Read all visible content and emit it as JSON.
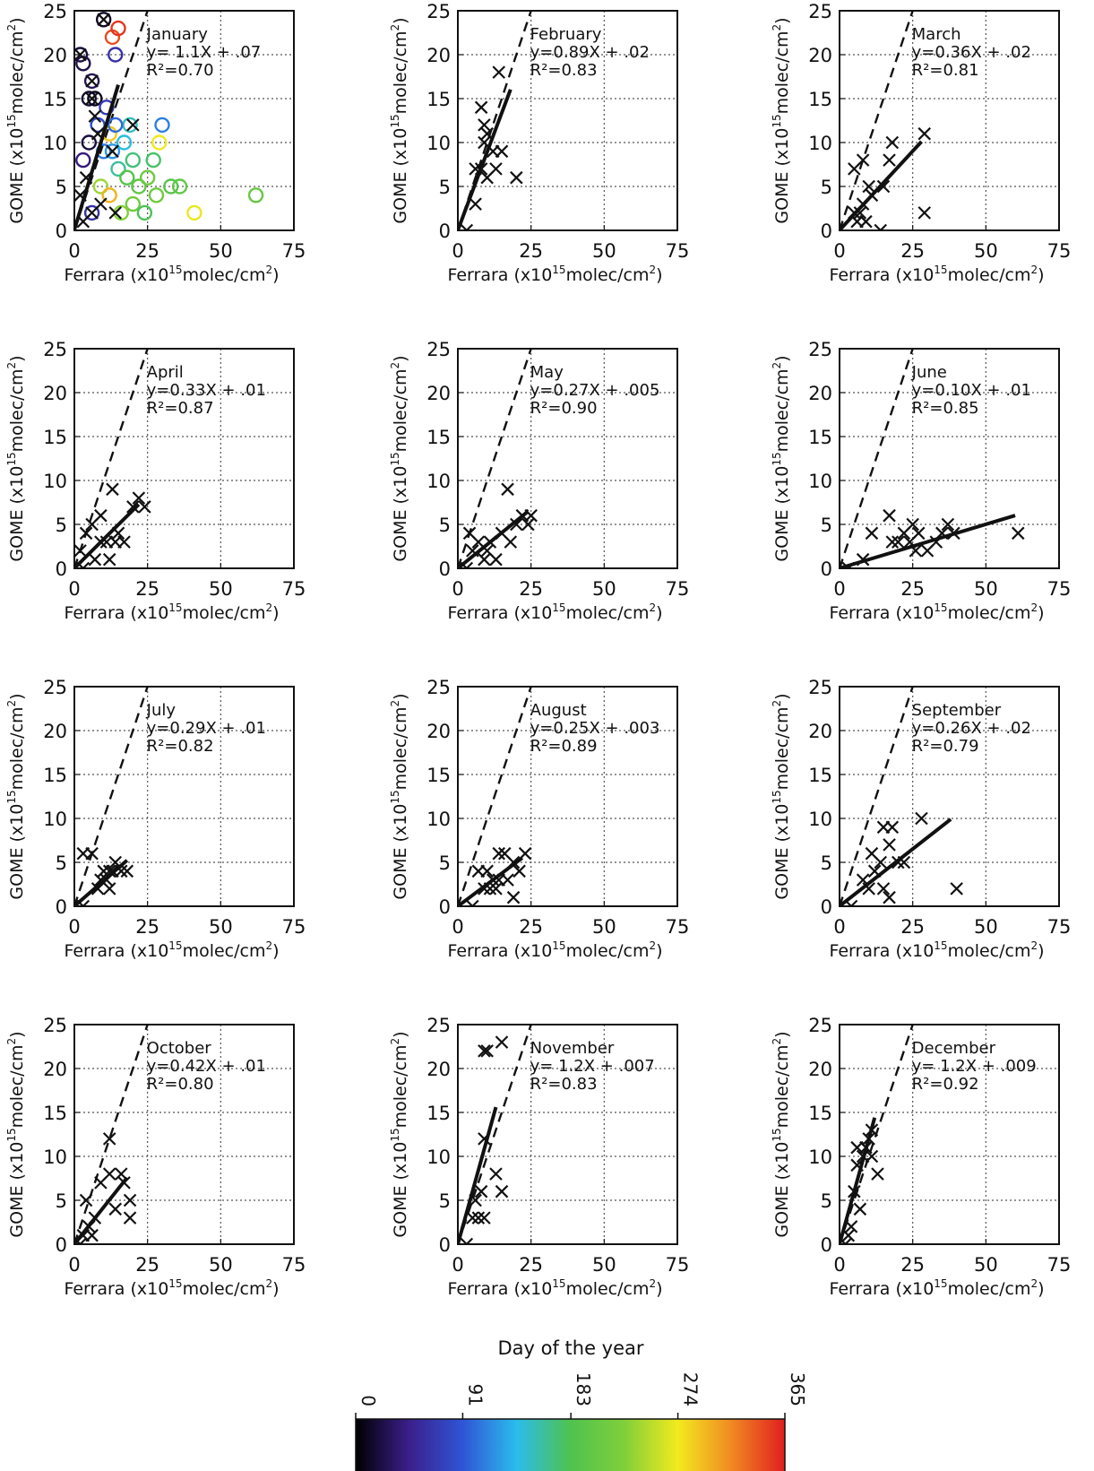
{
  "figure": {
    "colorbar": {
      "title": "Day of the year",
      "ticks": [
        0,
        91,
        183,
        274,
        365
      ],
      "colors": [
        "#000000",
        "#3b1f8c",
        "#2f55d6",
        "#2bbcec",
        "#4fc24f",
        "#7fcf3a",
        "#f2ea1e",
        "#f18a22",
        "#e01e1e"
      ]
    }
  },
  "chart_data": [
    {
      "type": "scatter",
      "month": "January",
      "xlabel": "Ferrara (x10^15 molec/cm^2)",
      "ylabel": "GOME (x10^15 molec/cm^2)",
      "xlim": [
        0,
        75
      ],
      "ylim": [
        0,
        25
      ],
      "xticks": [
        0,
        25,
        50,
        75
      ],
      "yticks": [
        0,
        5,
        10,
        15,
        20,
        25
      ],
      "grid": true,
      "one_to_one_line": "dashed",
      "fit": {
        "equation": "y= 1.1X + .07",
        "r2_label": "R²=0.70",
        "slope": 1.1,
        "intercept": 0.07,
        "x_end": 15
      },
      "points": [
        {
          "x": 2,
          "y": 20,
          "day": 20
        },
        {
          "x": 3,
          "y": 19,
          "day": 25
        },
        {
          "x": 5,
          "y": 15,
          "day": 15
        },
        {
          "x": 7,
          "y": 15,
          "day": 10
        },
        {
          "x": 6,
          "y": 17,
          "day": 30
        },
        {
          "x": 10,
          "y": 24,
          "day": 12
        },
        {
          "x": 14,
          "y": 20,
          "day": 60
        },
        {
          "x": 11,
          "y": 14,
          "day": 70
        },
        {
          "x": 8,
          "y": 12,
          "day": 80
        },
        {
          "x": 5,
          "y": 10,
          "day": 20
        },
        {
          "x": 3,
          "y": 8,
          "day": 40
        },
        {
          "x": 10,
          "y": 9,
          "day": 110
        },
        {
          "x": 13,
          "y": 9,
          "day": 120
        },
        {
          "x": 15,
          "y": 7,
          "day": 160
        },
        {
          "x": 20,
          "y": 8,
          "day": 170
        },
        {
          "x": 18,
          "y": 6,
          "day": 190
        },
        {
          "x": 22,
          "y": 5,
          "day": 200
        },
        {
          "x": 25,
          "y": 6,
          "day": 210
        },
        {
          "x": 28,
          "y": 4,
          "day": 215
        },
        {
          "x": 33,
          "y": 5,
          "day": 190
        },
        {
          "x": 36,
          "y": 5,
          "day": 200
        },
        {
          "x": 62,
          "y": 4,
          "day": 205
        },
        {
          "x": 41,
          "y": 2,
          "day": 270
        },
        {
          "x": 29,
          "y": 10,
          "day": 275
        },
        {
          "x": 30,
          "y": 12,
          "day": 110
        },
        {
          "x": 13,
          "y": 22,
          "day": 345
        },
        {
          "x": 15,
          "y": 23,
          "day": 355
        },
        {
          "x": 12,
          "y": 11,
          "day": 290
        },
        {
          "x": 17,
          "y": 10,
          "day": 140
        },
        {
          "x": 20,
          "y": 3,
          "day": 215
        },
        {
          "x": 9,
          "y": 5,
          "day": 240
        },
        {
          "x": 12,
          "y": 4,
          "day": 300
        },
        {
          "x": 16,
          "y": 2,
          "day": 230
        },
        {
          "x": 24,
          "y": 2,
          "day": 180
        },
        {
          "x": 6,
          "y": 2,
          "day": 60
        },
        {
          "x": 27,
          "y": 8,
          "day": 175
        },
        {
          "x": 19,
          "y": 12,
          "day": 150
        },
        {
          "x": 14,
          "y": 12,
          "day": 100
        }
      ],
      "crosses": [
        [
          10,
          24
        ],
        [
          2,
          20
        ],
        [
          6,
          17
        ],
        [
          6,
          15
        ],
        [
          7,
          13
        ],
        [
          13,
          9
        ],
        [
          4,
          6
        ],
        [
          6,
          2
        ],
        [
          9,
          3
        ],
        [
          3,
          1
        ],
        [
          14,
          2
        ],
        [
          20,
          12
        ],
        [
          8,
          11
        ],
        [
          2,
          4
        ]
      ]
    },
    {
      "type": "scatter",
      "month": "February",
      "xlim": [
        0,
        75
      ],
      "ylim": [
        0,
        25
      ],
      "grid": true,
      "one_to_one_line": "dashed",
      "fit": {
        "equation": "y=0.89X + .02",
        "r2_label": "R²=0.83",
        "slope": 0.89,
        "intercept": 0.02,
        "x_end": 18
      },
      "crosses": [
        [
          14,
          18
        ],
        [
          8,
          14
        ],
        [
          9,
          12
        ],
        [
          10,
          11
        ],
        [
          9,
          10
        ],
        [
          12,
          9
        ],
        [
          15,
          9
        ],
        [
          8,
          7
        ],
        [
          6,
          7
        ],
        [
          10,
          6
        ],
        [
          13,
          7
        ],
        [
          20,
          6
        ],
        [
          6,
          3
        ],
        [
          3,
          0
        ]
      ]
    },
    {
      "type": "scatter",
      "month": "March",
      "xlim": [
        0,
        75
      ],
      "ylim": [
        0,
        25
      ],
      "grid": true,
      "one_to_one_line": "dashed",
      "fit": {
        "equation": "y=0.36X + .02",
        "r2_label": "R²=0.81",
        "slope": 0.36,
        "intercept": 0.02,
        "x_end": 28
      },
      "crosses": [
        [
          29,
          11
        ],
        [
          18,
          10
        ],
        [
          8,
          8
        ],
        [
          5,
          7
        ],
        [
          17,
          8
        ],
        [
          10,
          5
        ],
        [
          15,
          5
        ],
        [
          11,
          4
        ],
        [
          8,
          3
        ],
        [
          7,
          2
        ],
        [
          5,
          2
        ],
        [
          9,
          1
        ],
        [
          6,
          1
        ],
        [
          14,
          0
        ],
        [
          29,
          2
        ]
      ]
    },
    {
      "type": "scatter",
      "month": "April",
      "xlim": [
        0,
        75
      ],
      "ylim": [
        0,
        25
      ],
      "grid": true,
      "one_to_one_line": "dashed",
      "fit": {
        "equation": "y=0.33X + .01",
        "r2_label": "R²=0.87",
        "slope": 0.33,
        "intercept": 0.01,
        "x_end": 22
      },
      "crosses": [
        [
          13,
          9
        ],
        [
          22,
          8
        ],
        [
          20,
          7
        ],
        [
          24,
          7
        ],
        [
          9,
          6
        ],
        [
          6,
          5
        ],
        [
          4,
          4
        ],
        [
          14,
          3
        ],
        [
          11,
          3
        ],
        [
          15,
          4
        ],
        [
          2,
          2
        ],
        [
          7,
          1
        ],
        [
          9,
          3
        ],
        [
          12,
          1
        ],
        [
          17,
          3
        ],
        [
          3,
          0
        ]
      ]
    },
    {
      "type": "scatter",
      "month": "May",
      "xlim": [
        0,
        75
      ],
      "ylim": [
        0,
        25
      ],
      "grid": true,
      "one_to_one_line": "dashed",
      "fit": {
        "equation": "y=0.27X + .005",
        "r2_label": "R²=0.90",
        "slope": 0.27,
        "intercept": 0.005,
        "x_end": 24
      },
      "crosses": [
        [
          17,
          9
        ],
        [
          25,
          6
        ],
        [
          22,
          6
        ],
        [
          20,
          5
        ],
        [
          24,
          5
        ],
        [
          4,
          4
        ],
        [
          15,
          4
        ],
        [
          11,
          3
        ],
        [
          7,
          3
        ],
        [
          18,
          3
        ],
        [
          10,
          2
        ],
        [
          13,
          1
        ],
        [
          9,
          1
        ],
        [
          5,
          2
        ],
        [
          3,
          0
        ]
      ]
    },
    {
      "type": "scatter",
      "month": "June",
      "xlim": [
        0,
        75
      ],
      "ylim": [
        0,
        25
      ],
      "grid": true,
      "one_to_one_line": "dashed",
      "fit": {
        "equation": "y=0.10X + .01",
        "r2_label": "R²=0.85",
        "slope": 0.1,
        "intercept": 0.01,
        "x_end": 60
      },
      "crosses": [
        [
          61,
          4
        ],
        [
          37,
          5
        ],
        [
          35,
          4
        ],
        [
          17,
          6
        ],
        [
          25,
          5
        ],
        [
          22,
          4
        ],
        [
          27,
          4
        ],
        [
          24,
          3
        ],
        [
          20,
          3
        ],
        [
          11,
          4
        ],
        [
          30,
          2
        ],
        [
          26,
          2
        ],
        [
          33,
          3
        ],
        [
          39,
          4
        ],
        [
          18,
          3
        ],
        [
          3,
          0
        ],
        [
          8,
          1
        ]
      ]
    },
    {
      "type": "scatter",
      "month": "July",
      "xlim": [
        0,
        75
      ],
      "ylim": [
        0,
        25
      ],
      "grid": true,
      "one_to_one_line": "dashed",
      "fit": {
        "equation": "y=0.29X + .01",
        "r2_label": "R²=0.82",
        "slope": 0.29,
        "intercept": 0.01,
        "x_end": 18
      },
      "crosses": [
        [
          3,
          6
        ],
        [
          6,
          6
        ],
        [
          14,
          5
        ],
        [
          16,
          4
        ],
        [
          12,
          4
        ],
        [
          11,
          3
        ],
        [
          13,
          4
        ],
        [
          18,
          4
        ],
        [
          9,
          3
        ],
        [
          8,
          2
        ],
        [
          12,
          2
        ],
        [
          10,
          4
        ],
        [
          3,
          0
        ]
      ]
    },
    {
      "type": "scatter",
      "month": "August",
      "xlim": [
        0,
        75
      ],
      "ylim": [
        0,
        25
      ],
      "grid": true,
      "one_to_one_line": "dashed",
      "fit": {
        "equation": "y=0.25X + .003",
        "r2_label": "R²=0.89",
        "slope": 0.25,
        "intercept": 0.003,
        "x_end": 22
      },
      "crosses": [
        [
          14,
          6
        ],
        [
          16,
          6
        ],
        [
          23,
          6
        ],
        [
          19,
          5
        ],
        [
          21,
          4
        ],
        [
          10,
          4
        ],
        [
          7,
          4
        ],
        [
          14,
          3
        ],
        [
          12,
          3
        ],
        [
          17,
          3
        ],
        [
          9,
          2
        ],
        [
          11,
          2
        ],
        [
          19,
          1
        ],
        [
          5,
          0
        ],
        [
          13,
          2
        ]
      ]
    },
    {
      "type": "scatter",
      "month": "September",
      "xlim": [
        0,
        75
      ],
      "ylim": [
        0,
        25
      ],
      "grid": true,
      "one_to_one_line": "dashed",
      "fit": {
        "equation": "y=0.26X + .02",
        "r2_label": "R²=0.79",
        "slope": 0.26,
        "intercept": 0.02,
        "x_end": 38
      },
      "crosses": [
        [
          28,
          10
        ],
        [
          15,
          9
        ],
        [
          18,
          9
        ],
        [
          17,
          7
        ],
        [
          11,
          6
        ],
        [
          14,
          5
        ],
        [
          20,
          5
        ],
        [
          22,
          5
        ],
        [
          12,
          4
        ],
        [
          8,
          3
        ],
        [
          10,
          2
        ],
        [
          15,
          2
        ],
        [
          17,
          1
        ],
        [
          40,
          2
        ],
        [
          4,
          0
        ]
      ]
    },
    {
      "type": "scatter",
      "month": "October",
      "xlim": [
        0,
        75
      ],
      "ylim": [
        0,
        25
      ],
      "grid": true,
      "one_to_one_line": "dashed",
      "fit": {
        "equation": "y=0.42X + .01",
        "r2_label": "R²=0.80",
        "slope": 0.42,
        "intercept": 0.01,
        "x_end": 18
      },
      "crosses": [
        [
          12,
          12
        ],
        [
          12,
          8
        ],
        [
          16,
          8
        ],
        [
          9,
          7
        ],
        [
          17,
          7
        ],
        [
          4,
          5
        ],
        [
          19,
          5
        ],
        [
          14,
          4
        ],
        [
          7,
          3
        ],
        [
          5,
          2
        ],
        [
          19,
          3
        ],
        [
          6,
          1
        ],
        [
          3,
          1
        ],
        [
          2,
          0
        ]
      ]
    },
    {
      "type": "scatter",
      "month": "November",
      "xlim": [
        0,
        75
      ],
      "ylim": [
        0,
        25
      ],
      "grid": true,
      "one_to_one_line": "dashed",
      "fit": {
        "equation": "y= 1.2X + .007",
        "r2_label": "R²=0.83",
        "slope": 1.2,
        "intercept": 0.007,
        "x_end": 13
      },
      "crosses": [
        [
          9,
          22
        ],
        [
          10,
          22
        ],
        [
          15,
          23
        ],
        [
          9,
          12
        ],
        [
          13,
          8
        ],
        [
          8,
          6
        ],
        [
          15,
          6
        ],
        [
          6,
          5
        ],
        [
          7,
          3
        ],
        [
          9,
          3
        ],
        [
          5,
          3
        ],
        [
          3,
          0
        ]
      ]
    },
    {
      "type": "scatter",
      "month": "December",
      "xlim": [
        0,
        75
      ],
      "ylim": [
        0,
        25
      ],
      "grid": true,
      "one_to_one_line": "dashed",
      "fit": {
        "equation": "y= 1.2X + .009",
        "r2_label": "R²=0.92",
        "slope": 1.2,
        "intercept": 0.009,
        "x_end": 12
      },
      "crosses": [
        [
          11,
          13
        ],
        [
          10,
          12
        ],
        [
          6,
          11
        ],
        [
          9,
          11
        ],
        [
          8,
          10
        ],
        [
          11,
          10
        ],
        [
          6,
          9
        ],
        [
          13,
          8
        ],
        [
          5,
          6
        ],
        [
          7,
          4
        ],
        [
          4,
          2
        ],
        [
          3,
          1
        ],
        [
          2,
          0
        ]
      ]
    }
  ]
}
